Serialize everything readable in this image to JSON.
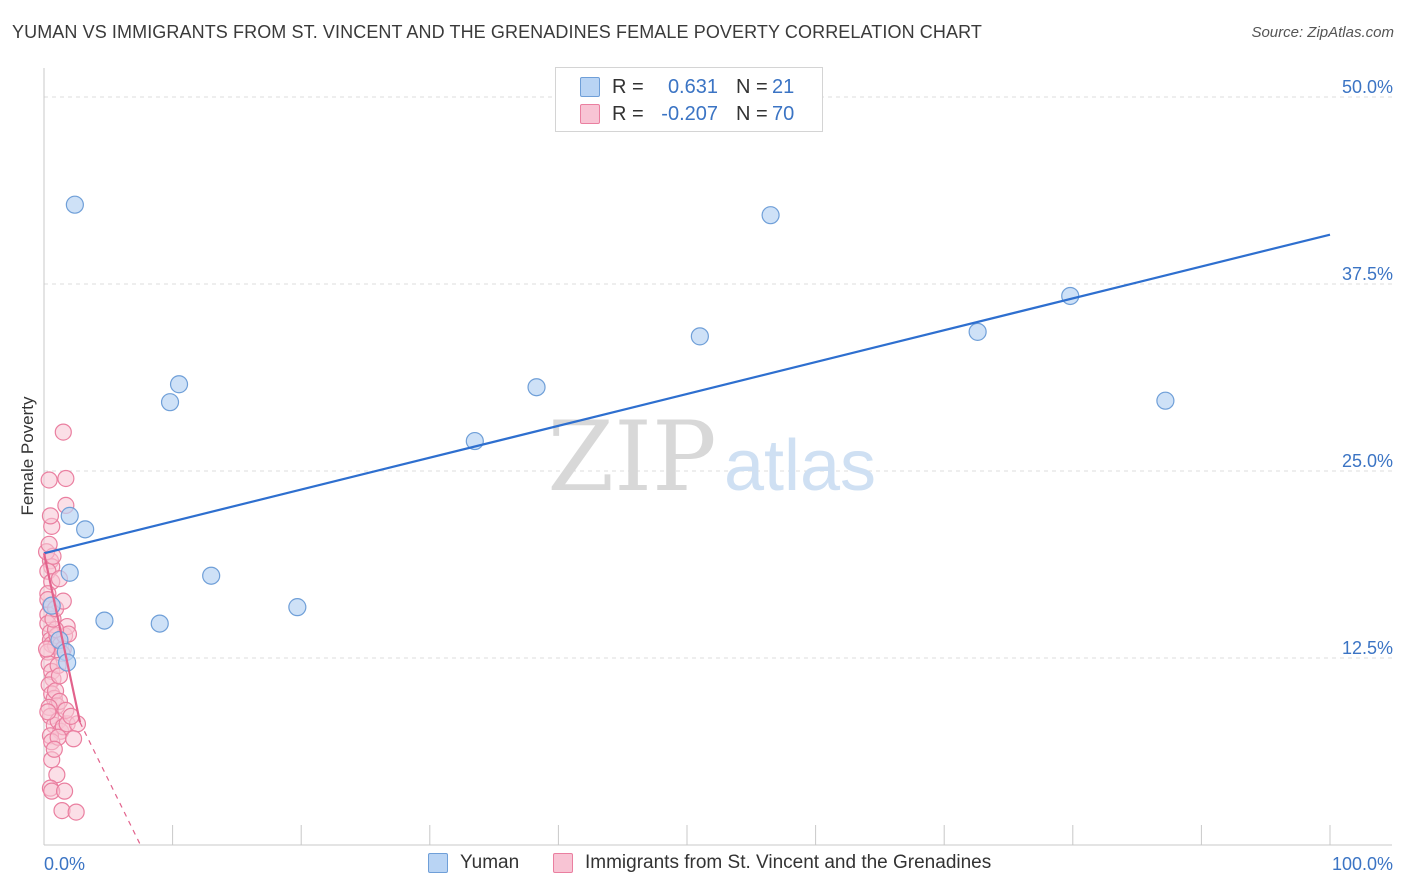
{
  "title": "YUMAN VS IMMIGRANTS FROM ST. VINCENT AND THE GRENADINES FEMALE POVERTY CORRELATION CHART",
  "source": "Source: ZipAtlas.com",
  "watermark": {
    "zip": "ZIP",
    "atlas": "atlas"
  },
  "legend": {
    "rows": [
      {
        "r_label": "R =",
        "r_value": "0.631",
        "n_label": "N =",
        "n_value": "21"
      },
      {
        "r_label": "R =",
        "r_value": "-0.207",
        "n_label": "N =",
        "n_value": "70"
      }
    ]
  },
  "bottom_legend": {
    "series1": "Yuman",
    "series2": "Immigrants from St. Vincent and the Grenadines"
  },
  "colors": {
    "yuman_fill": "#b9d4f4",
    "yuman_stroke": "#6f9fd8",
    "yuman_line": "#2e6fcf",
    "svg_fill": "#f8c4d4",
    "svg_stroke": "#ea7fa0",
    "svg_line": "#e2628c",
    "axis_label": "#3b74c4",
    "grid": "#dddddd"
  },
  "chart_data": {
    "type": "scatter",
    "xlabel": "",
    "ylabel": "Female Poverty",
    "xlim": [
      0,
      100
    ],
    "ylim": [
      0,
      50
    ],
    "x_ticks": [
      "0.0%",
      "100.0%"
    ],
    "y_ticks": [
      {
        "value": 12.5,
        "label": "12.5%"
      },
      {
        "value": 25.0,
        "label": "25.0%"
      },
      {
        "value": 37.5,
        "label": "37.5%"
      },
      {
        "value": 50.0,
        "label": "50.0%"
      }
    ],
    "series": [
      {
        "name": "Yuman",
        "r": 0.631,
        "n": 21,
        "trend": {
          "x0": 0,
          "y0": 19.5,
          "x1": 100,
          "y1": 40.8
        },
        "points": [
          [
            2.4,
            42.8
          ],
          [
            2.0,
            22.0
          ],
          [
            3.2,
            21.1
          ],
          [
            2.0,
            18.2
          ],
          [
            0.6,
            16.0
          ],
          [
            1.2,
            13.7
          ],
          [
            1.7,
            12.9
          ],
          [
            1.8,
            12.2
          ],
          [
            4.7,
            15.0
          ],
          [
            9.0,
            14.8
          ],
          [
            9.8,
            29.6
          ],
          [
            10.5,
            30.8
          ],
          [
            13.0,
            18.0
          ],
          [
            19.7,
            15.9
          ],
          [
            33.5,
            27.0
          ],
          [
            38.3,
            30.6
          ],
          [
            51.0,
            34.0
          ],
          [
            56.5,
            42.1
          ],
          [
            72.6,
            34.3
          ],
          [
            79.8,
            36.7
          ],
          [
            87.2,
            29.7
          ]
        ]
      },
      {
        "name": "Immigrants from St. Vincent and the Grenadines",
        "r": -0.207,
        "n": 70,
        "trend": {
          "x0": 0,
          "y0": 19.5,
          "x1": 2.8,
          "y1": 8.2
        },
        "trend_dashed": {
          "x0": 2.8,
          "x1": 7.5,
          "y1": 0
        },
        "points": [
          [
            1.5,
            27.6
          ],
          [
            1.7,
            24.5
          ],
          [
            0.4,
            24.4
          ],
          [
            1.7,
            22.7
          ],
          [
            0.6,
            21.3
          ],
          [
            0.5,
            22.0
          ],
          [
            0.5,
            19.0
          ],
          [
            0.6,
            18.6
          ],
          [
            0.3,
            18.3
          ],
          [
            0.6,
            17.6
          ],
          [
            1.2,
            17.8
          ],
          [
            0.3,
            16.8
          ],
          [
            0.5,
            16.0
          ],
          [
            0.3,
            15.4
          ],
          [
            0.3,
            14.8
          ],
          [
            0.5,
            14.2
          ],
          [
            0.5,
            13.7
          ],
          [
            0.6,
            13.4
          ],
          [
            0.9,
            13.3
          ],
          [
            1.0,
            14.0
          ],
          [
            1.3,
            13.4
          ],
          [
            1.5,
            13.1
          ],
          [
            1.6,
            14.0
          ],
          [
            1.8,
            14.6
          ],
          [
            1.9,
            14.1
          ],
          [
            0.3,
            12.9
          ],
          [
            0.4,
            12.1
          ],
          [
            0.6,
            11.6
          ],
          [
            0.7,
            11.1
          ],
          [
            0.4,
            10.7
          ],
          [
            0.6,
            10.1
          ],
          [
            0.8,
            9.8
          ],
          [
            0.9,
            10.3
          ],
          [
            1.0,
            9.3
          ],
          [
            1.2,
            9.6
          ],
          [
            0.4,
            9.2
          ],
          [
            0.5,
            8.6
          ],
          [
            0.8,
            8.0
          ],
          [
            1.1,
            8.3
          ],
          [
            1.3,
            7.6
          ],
          [
            1.5,
            7.9
          ],
          [
            1.8,
            8.1
          ],
          [
            2.6,
            8.1
          ],
          [
            0.5,
            7.3
          ],
          [
            0.6,
            6.9
          ],
          [
            1.1,
            7.2
          ],
          [
            2.3,
            7.1
          ],
          [
            0.6,
            5.7
          ],
          [
            1.0,
            4.7
          ],
          [
            0.5,
            3.8
          ],
          [
            0.6,
            3.6
          ],
          [
            1.6,
            3.6
          ],
          [
            1.4,
            2.3
          ],
          [
            2.5,
            2.2
          ],
          [
            0.3,
            16.4
          ],
          [
            0.2,
            19.6
          ],
          [
            0.7,
            19.3
          ],
          [
            0.9,
            14.4
          ],
          [
            1.4,
            12.8
          ],
          [
            1.1,
            12.0
          ],
          [
            0.2,
            13.1
          ],
          [
            0.7,
            15.1
          ],
          [
            0.4,
            20.1
          ],
          [
            1.2,
            11.3
          ],
          [
            0.8,
            6.4
          ],
          [
            1.7,
            9.0
          ],
          [
            0.3,
            8.9
          ],
          [
            2.1,
            8.6
          ],
          [
            0.9,
            15.8
          ],
          [
            1.5,
            16.3
          ]
        ]
      }
    ]
  }
}
